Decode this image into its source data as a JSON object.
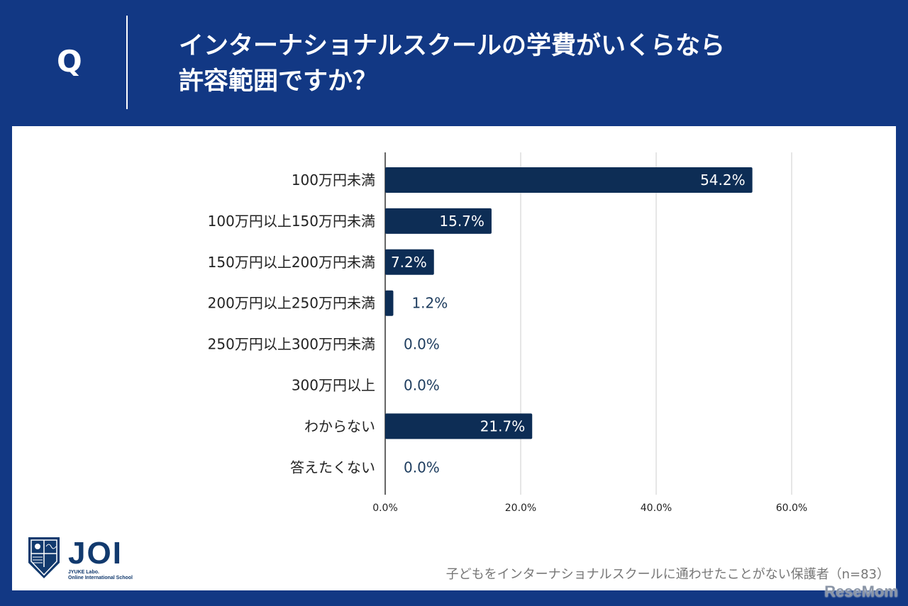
{
  "header": {
    "q_label": "Q",
    "title_line1": "インターナショナルスクールの学費がいくらなら",
    "title_line2": "許容範囲ですか？"
  },
  "chart_data": {
    "type": "bar",
    "orientation": "horizontal",
    "categories": [
      "100万円未満",
      "100万円以上150万円未満",
      "150万円以上200万円未満",
      "200万円以上250万円未満",
      "250万円以上300万円未満",
      "300万円以上",
      "わからない",
      "答えたくない"
    ],
    "values": [
      54.2,
      15.7,
      7.2,
      1.2,
      0.0,
      0.0,
      21.7,
      0.0
    ],
    "data_labels": [
      "54.2%",
      "15.7%",
      "7.2%",
      "1.2%",
      "0.0%",
      "0.0%",
      "21.7%",
      "0.0%"
    ],
    "xlim": [
      0,
      60
    ],
    "xticks": [
      "0.0%",
      "20.0%",
      "40.0%",
      "60.0%"
    ],
    "grid": true,
    "bar_color": "#0d2d55"
  },
  "footer": {
    "note": "子どもをインターナショナルスクールに通わせたことがない保護者（n=83）",
    "logo_text": "JOI",
    "logo_sub1": "JYUKE Labo.",
    "logo_sub2": "Online International School",
    "watermark": "ReseMom"
  }
}
